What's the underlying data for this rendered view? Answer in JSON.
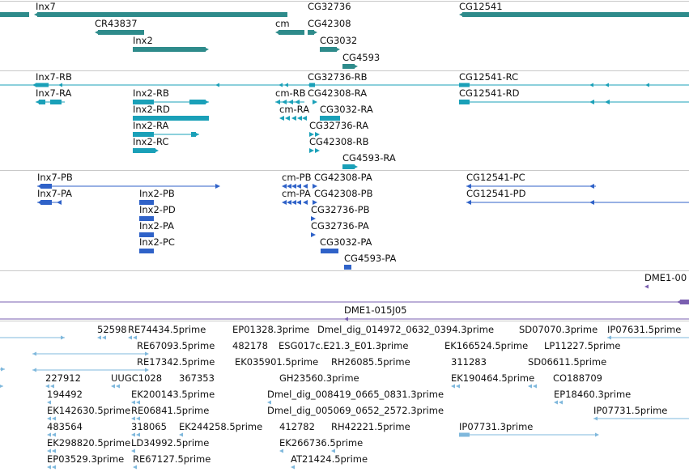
{
  "colors": {
    "gene": "#2e8b8b",
    "mrna": "#1aa0b8",
    "protein": "#2f62c8",
    "clone": "#7a5fb0",
    "est": "#7fb8dc",
    "separator": "#c8c8c8"
  },
  "tracks": {
    "genes": [
      {
        "label": "Inx7"
      },
      {
        "label": "CG32736"
      },
      {
        "label": "CG12541"
      },
      {
        "label": "CR43837"
      },
      {
        "label": "cm"
      },
      {
        "label": "CG42308"
      },
      {
        "label": "Inx2"
      },
      {
        "label": "CG3032"
      },
      {
        "label": "CG4593"
      }
    ],
    "transcripts": [
      {
        "label": "Inx7-RB"
      },
      {
        "label": "CG32736-RB"
      },
      {
        "label": "CG12541-RC"
      },
      {
        "label": "Inx7-RA"
      },
      {
        "label": "Inx2-RB"
      },
      {
        "label": "cm-RB"
      },
      {
        "label": "CG42308-RA"
      },
      {
        "label": "CG12541-RD"
      },
      {
        "label": "Inx2-RD"
      },
      {
        "label": "cm-RA"
      },
      {
        "label": "CG3032-RA"
      },
      {
        "label": "Inx2-RA"
      },
      {
        "label": "CG32736-RA"
      },
      {
        "label": "Inx2-RC"
      },
      {
        "label": "CG42308-RB"
      },
      {
        "label": "CG4593-RA"
      }
    ],
    "proteins": [
      {
        "label": "Inx7-PB"
      },
      {
        "label": "cm-PB"
      },
      {
        "label": "CG42308-PA"
      },
      {
        "label": "CG12541-PC"
      },
      {
        "label": "Inx7-PA"
      },
      {
        "label": "Inx2-PB"
      },
      {
        "label": "cm-PA"
      },
      {
        "label": "CG42308-PB"
      },
      {
        "label": "CG12541-PD"
      },
      {
        "label": "Inx2-PD"
      },
      {
        "label": "CG32736-PB"
      },
      {
        "label": "Inx2-PA"
      },
      {
        "label": "CG32736-PA"
      },
      {
        "label": "Inx2-PC"
      },
      {
        "label": "CG3032-PA"
      },
      {
        "label": "CG4593-PA"
      }
    ],
    "clones": [
      {
        "label": "DME1-00"
      },
      {
        "label": "DME1-015J05"
      }
    ],
    "ests": [
      {
        "label": "52598"
      },
      {
        "label": "RE74434.5prime"
      },
      {
        "label": "EP01328.3prime"
      },
      {
        "label": "Dmel_dig_014972_0632_0394.3prime"
      },
      {
        "label": "SD07070.3prime"
      },
      {
        "label": "IP07631.5prime"
      },
      {
        "label": "RE67093.5prime"
      },
      {
        "label": "482178"
      },
      {
        "label": "ESG017c.E21.3_E01.3prime"
      },
      {
        "label": "EK166524.5prime"
      },
      {
        "label": "LP11227.5prime"
      },
      {
        "label": "RE17342.5prime"
      },
      {
        "label": "EK035901.5prime"
      },
      {
        "label": "RH26085.5prime"
      },
      {
        "label": "311283"
      },
      {
        "label": "SD06611.5prime"
      },
      {
        "label": "227912"
      },
      {
        "label": "UUGC1028"
      },
      {
        "label": "367353"
      },
      {
        "label": "GH23560.3prime"
      },
      {
        "label": "EK190464.5prime"
      },
      {
        "label": "CO188709"
      },
      {
        "label": "194492"
      },
      {
        "label": "EK200143.5prime"
      },
      {
        "label": "Dmel_dig_008419_0665_0831.3prime"
      },
      {
        "label": "EP18460.3prime"
      },
      {
        "label": "EK142630.5prime"
      },
      {
        "label": "RE06841.5prime"
      },
      {
        "label": "Dmel_dig_005069_0652_2572.3prime"
      },
      {
        "label": "IP07731.5prime"
      },
      {
        "label": "483564"
      },
      {
        "label": "318065"
      },
      {
        "label": "EK244258.5prime"
      },
      {
        "label": "412782"
      },
      {
        "label": "RH42221.5prime"
      },
      {
        "label": "IP07731.3prime"
      },
      {
        "label": "EK298820.5prime"
      },
      {
        "label": "LD34992.5prime"
      },
      {
        "label": "EK266736.5prime"
      },
      {
        "label": "EP03529.3prime"
      },
      {
        "label": "RE67127.5prime"
      },
      {
        "label": "AT21424.5prime"
      }
    ]
  }
}
